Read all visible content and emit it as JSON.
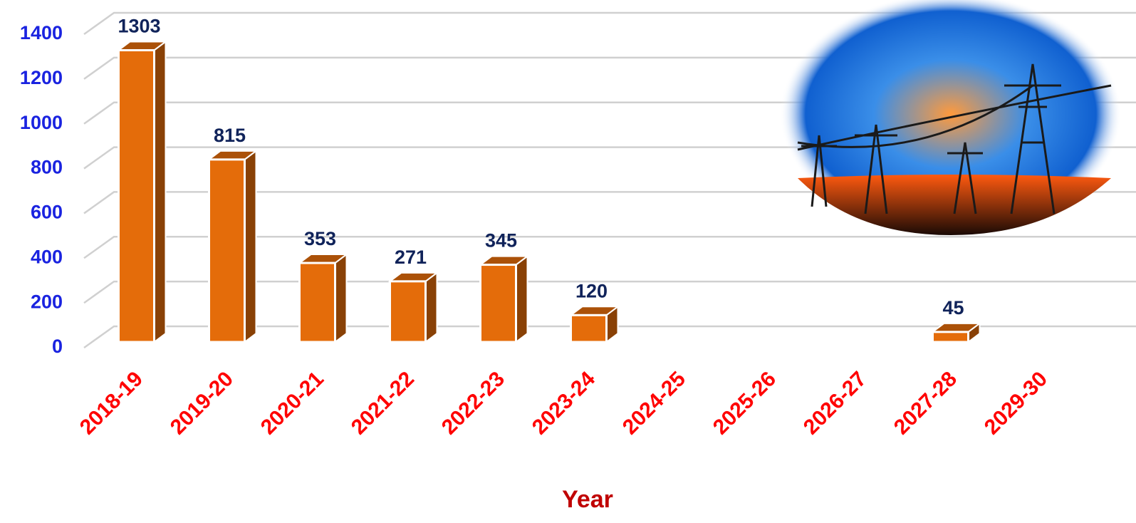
{
  "chart_data": {
    "type": "bar3d",
    "categories": [
      "2018-19",
      "2019-20",
      "2020-21",
      "2021-22",
      "2022-23",
      "2023-24",
      "2024-25",
      "2025-26",
      "2026-27",
      "2027-28",
      "2029-30"
    ],
    "values": [
      1303,
      815,
      353,
      271,
      345,
      120,
      null,
      null,
      null,
      45,
      null
    ],
    "color": "#e46c0a",
    "ylim": [
      0,
      1400
    ],
    "yticks": [
      0,
      200,
      400,
      600,
      800,
      1000,
      1200,
      1400
    ],
    "grid": true,
    "x_label": "Year"
  }
}
